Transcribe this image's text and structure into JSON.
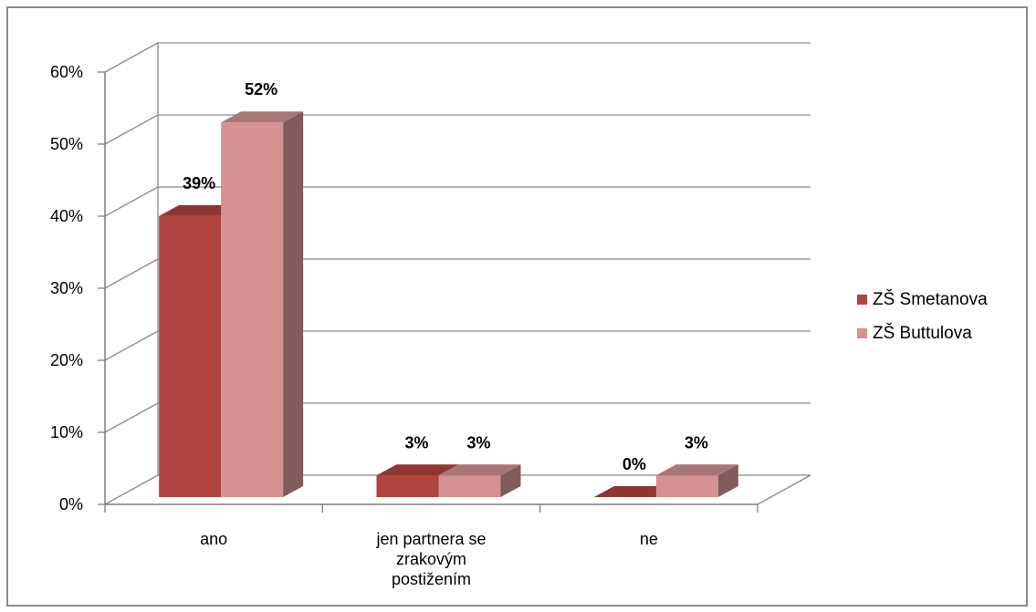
{
  "chart_data": {
    "type": "bar",
    "style": "3d-clustered-column",
    "categories": [
      "ano",
      "jen partnera se zrakovým postižením",
      "ne"
    ],
    "category_lines": [
      [
        "ano"
      ],
      [
        "jen partnera se",
        "zrakovým",
        "postižením"
      ],
      [
        "ne"
      ]
    ],
    "series": [
      {
        "name": "ZŠ Smetanova",
        "values": [
          39,
          3,
          0
        ],
        "color": "#b0443f"
      },
      {
        "name": "ZŠ Buttulova",
        "values": [
          52,
          3,
          3
        ],
        "color": "#d49391"
      }
    ],
    "data_labels": [
      [
        "39%",
        "3%",
        "0%"
      ],
      [
        "52%",
        "3%",
        "3%"
      ]
    ],
    "y_ticks": [
      "0%",
      "10%",
      "20%",
      "30%",
      "40%",
      "50%",
      "60%"
    ],
    "ylim": [
      0,
      60
    ],
    "grid": true,
    "legend_position": "right"
  }
}
